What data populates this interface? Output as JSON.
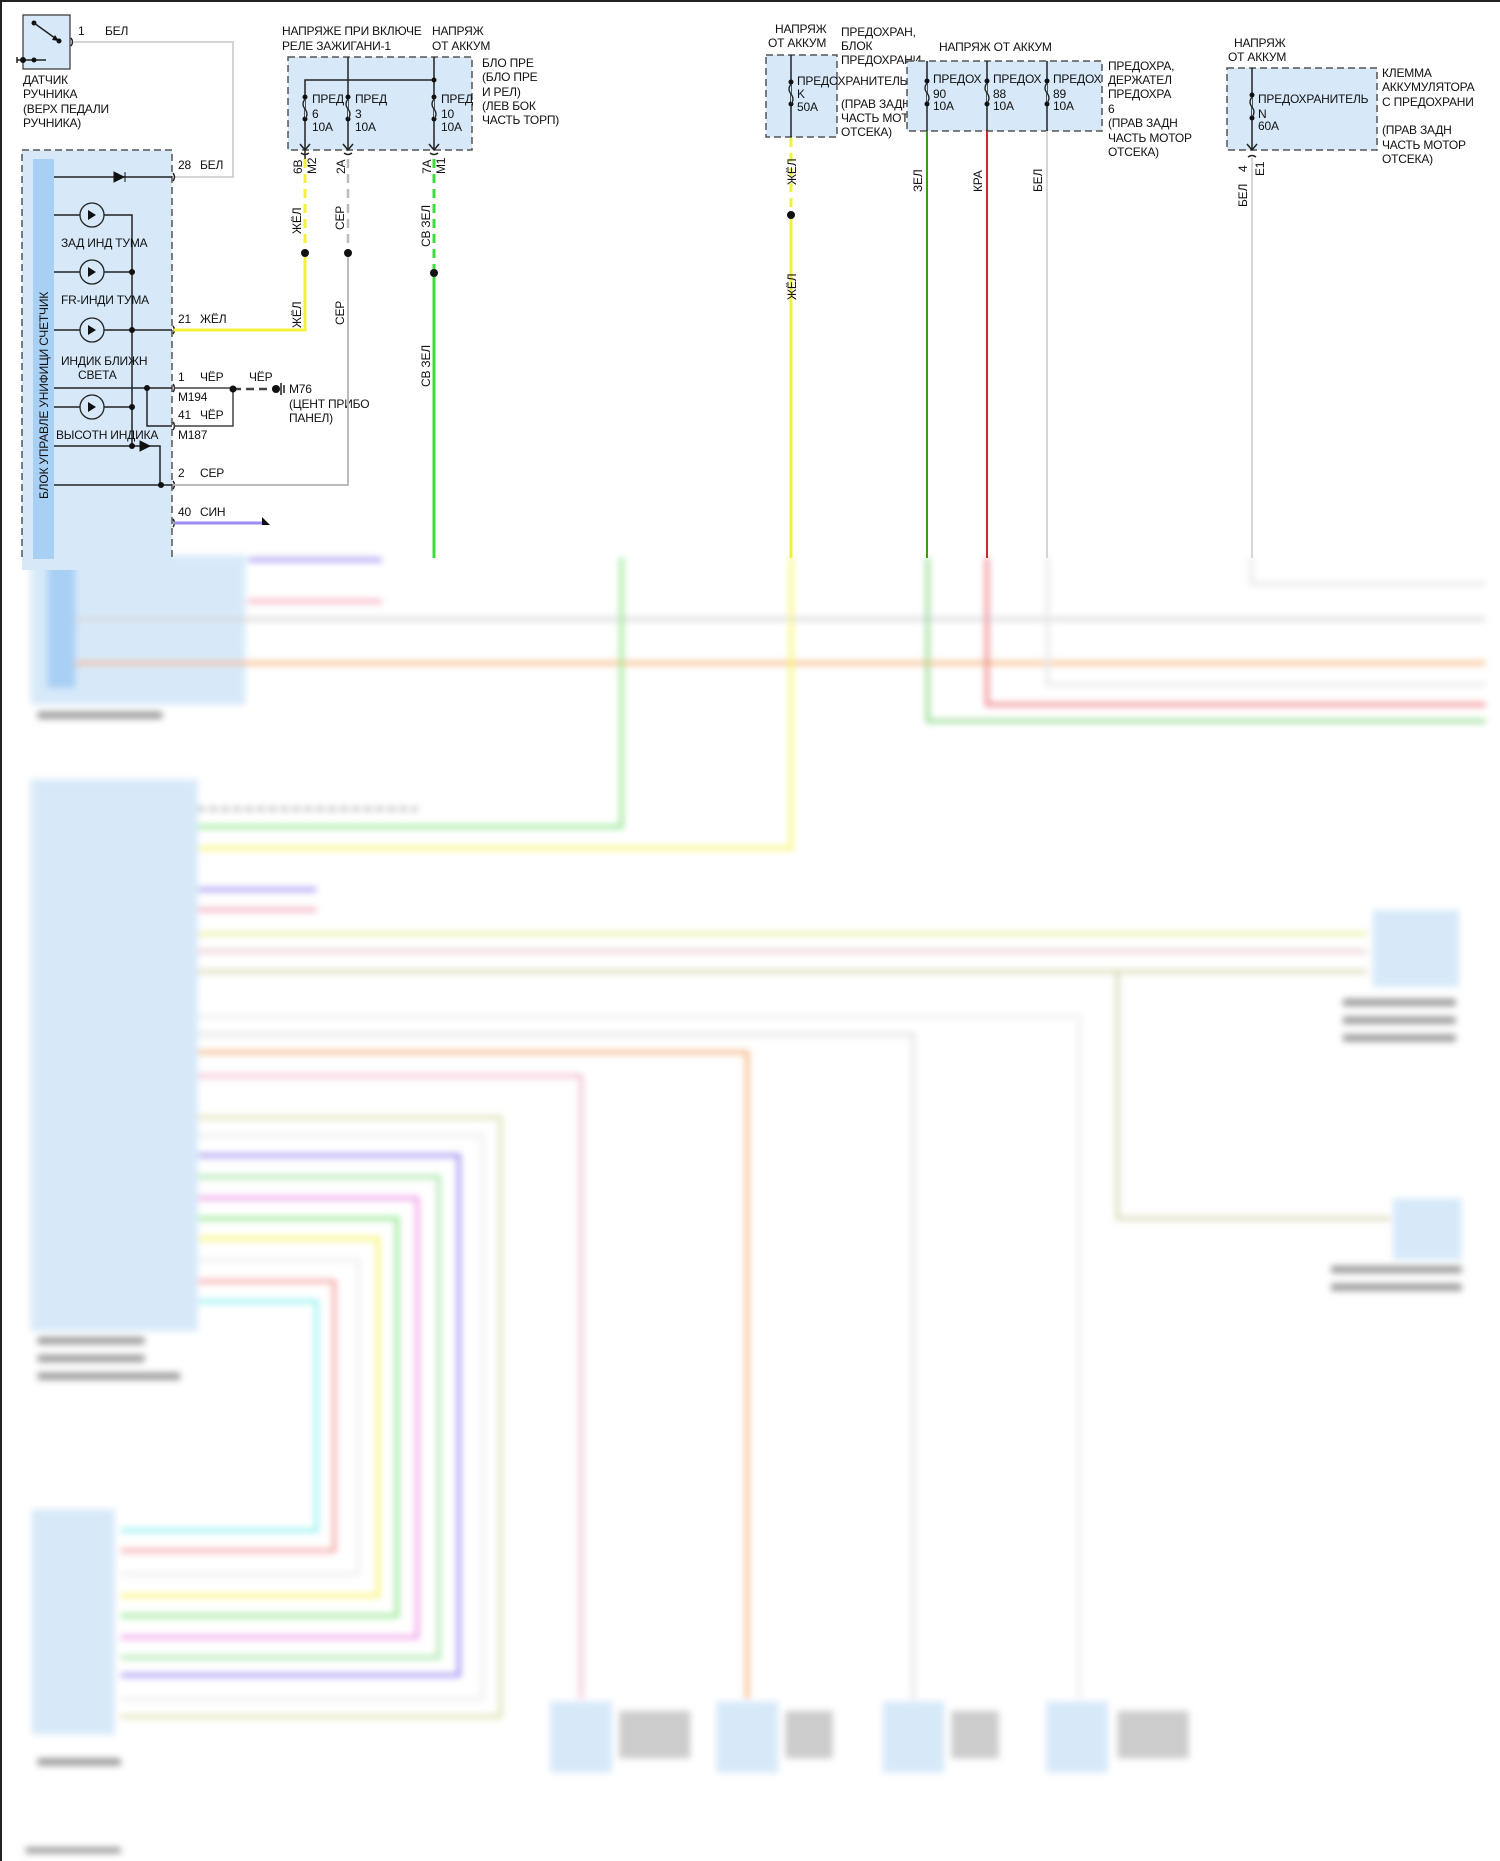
{
  "handbrake_sensor": {
    "pin": "1",
    "wire": "БЕЛ",
    "label": [
      "ДАТЧИК",
      "РУЧНИКА",
      "(ВЕРХ ПЕДАЛИ",
      "РУЧНИКА)"
    ]
  },
  "cluster": {
    "title": "БЛОК УПРАВЛЕ УНИФИЦИ СЧЕТЧИК",
    "indicators": [
      "ЗАД ИНД ТУМА",
      "FR-ИНДИ ТУМА",
      "ИНДИК БЛИЖН",
      "СВЕТА",
      "ВЫСОТН ИНДИКА"
    ],
    "pins": [
      {
        "pin": "28",
        "wire": "БЕЛ"
      },
      {
        "pin": "21",
        "wire": "ЖЁЛ"
      },
      {
        "pin": "1",
        "wire": "ЧЁР",
        "connector": "M194"
      },
      {
        "pin": "41",
        "wire": "ЧЁР",
        "connector": "M187"
      },
      {
        "pin": "2",
        "wire": "СЕР"
      },
      {
        "pin": "40",
        "wire": "СИН"
      }
    ]
  },
  "ground": {
    "wire": "ЧЁР",
    "id": "M76",
    "location": [
      "(ЦЕНТ ПРИБО",
      "ПАНЕЛ)"
    ]
  },
  "fuse_box_1": {
    "header_left": [
      "НАПРЯЖЕ ПРИ ВКЛЮЧЕ",
      "РЕЛЕ ЗАЖИГАНИ-1"
    ],
    "header_right": [
      "НАПРЯЖ",
      "ОТ АККУМ"
    ],
    "side": [
      "БЛО ПРЕ",
      "(БЛО ПРЕ",
      "И РЕЛ)",
      "(ЛЕВ БОК",
      "ЧАСТЬ ТОРП)"
    ],
    "fuses": [
      {
        "name": "ПРЕД",
        "number": "6",
        "rating": "10A",
        "pin": "6B",
        "connector": "M2",
        "wire": "ЖЁЛ"
      },
      {
        "name": "ПРЕД",
        "number": "3",
        "rating": "10A",
        "pin": "2A",
        "wire": "СЕР"
      },
      {
        "name": "ПРЕД",
        "number": "10",
        "rating": "10A",
        "pin": "7A",
        "connector": "M1",
        "wire": "СВ ЗЕЛ"
      }
    ]
  },
  "fuse_box_k": {
    "header": [
      "НАПРЯЖ",
      "ОТ АККУМ"
    ],
    "fuse": {
      "name": "ПРЕДОХРАНИТЕЛЬ",
      "number": "K",
      "rating": "50A",
      "wire": "ЖЁЛ"
    },
    "side": [
      "ПРЕДОХРАН,",
      "БЛОК",
      "ПРЕДОХРАНИ",
      "(ПРАВ ЗАДН",
      "ЧАСТЬ МОТОР",
      "ОТСЕКА)"
    ]
  },
  "fuse_box_3": {
    "header": "НАПРЯЖ ОТ АККУМ",
    "fuses": [
      {
        "name": "ПРЕДОХ",
        "number": "90",
        "rating": "10A",
        "wire": "ЗЕЛ"
      },
      {
        "name": "ПРЕДОХ",
        "number": "88",
        "rating": "10A",
        "wire": "КРА"
      },
      {
        "name": "ПРЕДОХ",
        "number": "89",
        "rating": "10A",
        "wire": "БЕЛ"
      }
    ],
    "side": [
      "ПРЕДОХРА,",
      "ДЕРЖАТЕЛ",
      "ПРЕДОХРА",
      "6",
      "(ПРАВ ЗАДН",
      "ЧАСТЬ МОТОР",
      "ОТСЕКА)"
    ]
  },
  "fuse_box_n": {
    "header": [
      "НАПРЯЖ",
      "ОТ АККУМ"
    ],
    "fuse": {
      "name": "ПРЕДОХРАНИТЕЛЬ",
      "number": "N",
      "rating": "60A",
      "pin": "4",
      "connector": "E1",
      "wire": "БЕЛ"
    },
    "side": [
      "КЛЕММА",
      "АККУМУЛЯТОРА",
      "С ПРЕДОХРАНИ",
      "(ПРАВ ЗАДН",
      "ЧАСТЬ МОТОР",
      "ОТСЕКА)"
    ]
  },
  "colors": {
    "box_fill": "#d7e9f9",
    "white_wire": "#cfcfcf",
    "yellow": "#f2f23a",
    "grey": "#b5b5b5",
    "light_green": "#3ddc3d",
    "green": "#3a9a1a",
    "red": "#cc2a2a",
    "blue": "#8c7ce8",
    "orange": "#f5b27a",
    "pink": "#f2a6b8"
  }
}
